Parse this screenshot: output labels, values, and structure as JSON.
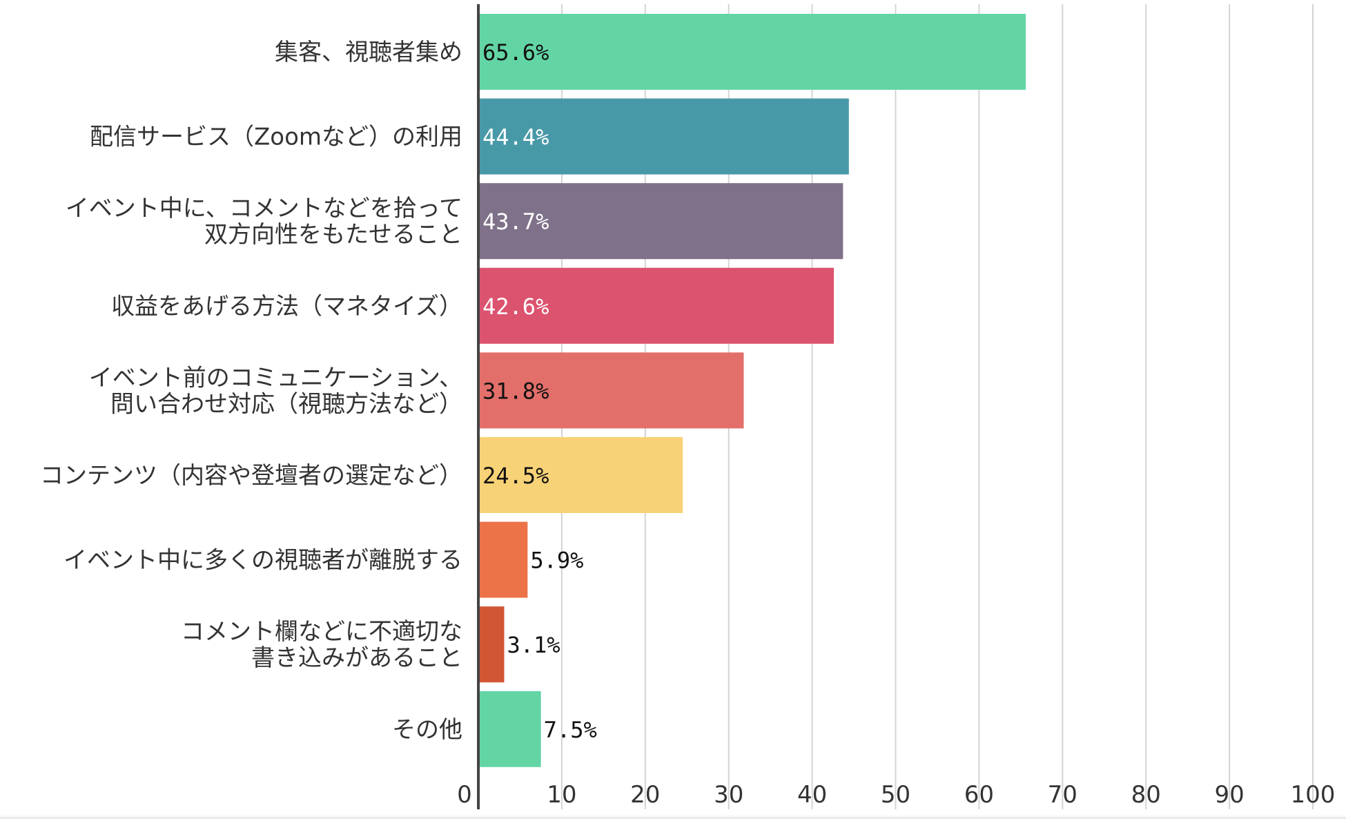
{
  "chart_data": {
    "type": "bar",
    "orientation": "horizontal",
    "categories": [
      "集客、視聴者集め",
      "配信サービス（Zoomなど）の利用",
      "イベント中に、コメントなどを拾って\n双方向性をもたせること",
      "収益をあげる方法（マネタイズ）",
      "イベント前のコミュニケーション、\n問い合わせ対応（視聴方法など）",
      "コンテンツ（内容や登壇者の選定など）",
      "イベント中に多くの視聴者が離脱する",
      "コメント欄などに不適切な\n書き込みがあること",
      "その他"
    ],
    "values": [
      65.6,
      44.4,
      43.7,
      42.6,
      31.8,
      24.5,
      5.9,
      3.1,
      7.5
    ],
    "value_labels": [
      "65.6%",
      "44.4%",
      "43.7%",
      "42.6%",
      "31.8%",
      "24.5%",
      "5.9%",
      "3.1%",
      "7.5%"
    ],
    "colors": [
      "#63d5a5",
      "#4899a8",
      "#7f7189",
      "#dc536f",
      "#e36f6a",
      "#f8d276",
      "#ec7347",
      "#d15734",
      "#63d5a5"
    ],
    "label_colors": [
      "#111111",
      "#ffffff",
      "#ffffff",
      "#ffffff",
      "#111111",
      "#111111",
      "#111111",
      "#111111",
      "#111111"
    ],
    "xlim": [
      0,
      100
    ],
    "xticks": [
      0,
      10,
      20,
      30,
      40,
      50,
      60,
      70,
      80,
      90,
      100
    ],
    "grid": true,
    "legend": "none",
    "title": "",
    "xlabel": "",
    "ylabel": ""
  }
}
